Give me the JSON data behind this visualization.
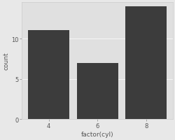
{
  "categories": [
    "4",
    "6",
    "8"
  ],
  "values": [
    11,
    7,
    14
  ],
  "bar_color": "#3c3c3c",
  "bar_edgecolor": "none",
  "outer_bg": "#e8e8e8",
  "panel_color": "#e0e0e0",
  "title": "",
  "xlabel": "factor(cyl)",
  "ylabel": "count",
  "ylim": [
    0,
    14.5
  ],
  "yticks": [
    0,
    5,
    10
  ],
  "xlabel_fontsize": 6.5,
  "ylabel_fontsize": 6.5,
  "tick_fontsize": 6.0,
  "grid_color": "#f5f5f5",
  "grid_linewidth": 0.7,
  "tick_color": "#888888",
  "label_color": "#555555"
}
